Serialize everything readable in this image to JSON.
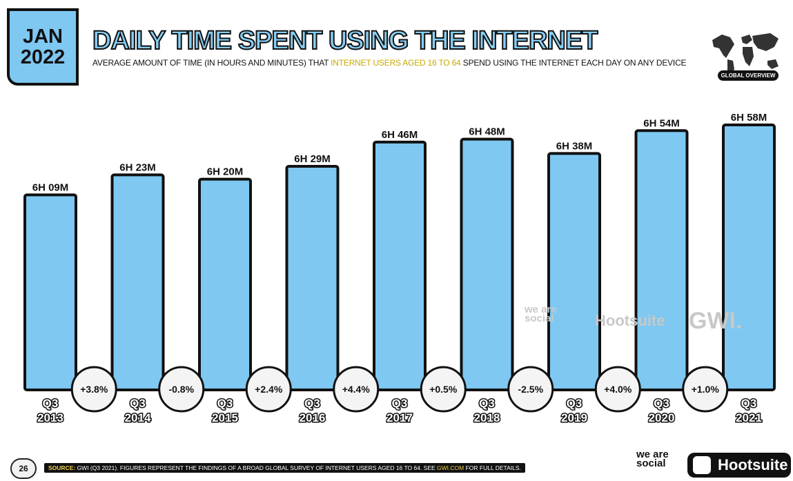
{
  "header": {
    "badge_month": "JAN",
    "badge_year": "2022",
    "title": "DAILY TIME SPENT USING THE INTERNET",
    "subtitle_pre": "AVERAGE AMOUNT OF TIME (IN HOURS AND MINUTES) THAT ",
    "subtitle_highlight": "INTERNET USERS AGED 16 TO 64",
    "subtitle_post": " SPEND USING THE INTERNET EACH DAY ON ANY DEVICE",
    "globe_label": "GLOBAL OVERVIEW"
  },
  "colors": {
    "bar": "#7ec8f2",
    "bar_outline": "#111111",
    "title_fill": "#86cdf3",
    "highlight": "#c9a800"
  },
  "watermark": {
    "wearesocial": "we are social",
    "hootsuite": "Hootsuite",
    "gwi": "GWI."
  },
  "chart_data": {
    "type": "bar",
    "categories": [
      "Q3 2013",
      "Q3 2014",
      "Q3 2015",
      "Q3 2016",
      "Q3 2017",
      "Q3 2018",
      "Q3 2019",
      "Q3 2020",
      "Q3 2021"
    ],
    "category_lines": [
      [
        "Q3",
        "2013"
      ],
      [
        "Q3",
        "2014"
      ],
      [
        "Q3",
        "2015"
      ],
      [
        "Q3",
        "2016"
      ],
      [
        "Q3",
        "2017"
      ],
      [
        "Q3",
        "2018"
      ],
      [
        "Q3",
        "2019"
      ],
      [
        "Q3",
        "2020"
      ],
      [
        "Q3",
        "2021"
      ]
    ],
    "values": [
      369,
      383,
      380,
      389,
      406,
      408,
      398,
      414,
      418
    ],
    "value_labels": [
      "6H 09M",
      "6H 23M",
      "6H 20M",
      "6H 29M",
      "6H 46M",
      "6H 48M",
      "6H 38M",
      "6H 54M",
      "6H 58M"
    ],
    "changes": [
      "+3.8%",
      "-0.8%",
      "+2.4%",
      "+4.4%",
      "+0.5%",
      "-2.5%",
      "+4.0%",
      "+1.0%"
    ],
    "unit": "minutes"
  },
  "footer": {
    "page_number": "26",
    "source_label": "SOURCE:",
    "source_text": " GWI (Q3 2021). FIGURES REPRESENT THE FINDINGS OF A BROAD GLOBAL SURVEY OF INTERNET USERS AGED 16 TO 64. SEE ",
    "source_link": "GWI.COM",
    "source_end": " FOR FULL DETAILS.",
    "wearesocial": "we are social",
    "hootsuite": "Hootsuite"
  }
}
